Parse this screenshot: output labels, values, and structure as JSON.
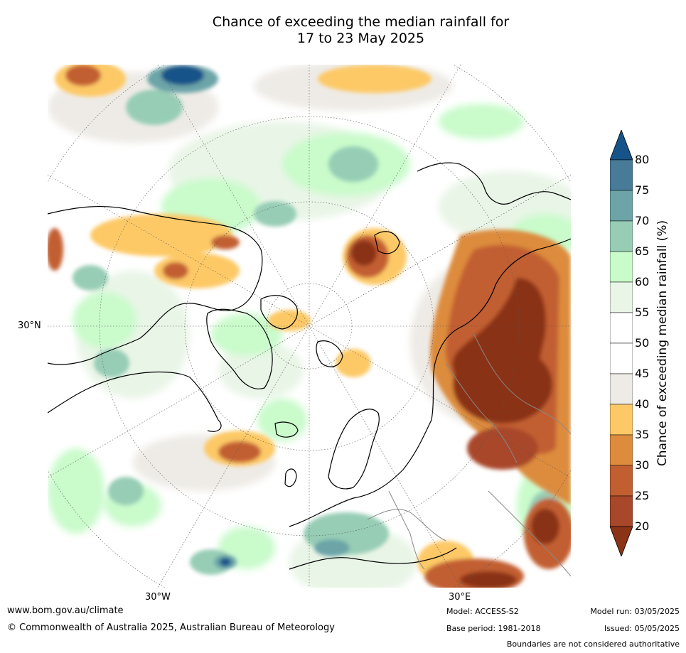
{
  "title": {
    "line1": "Chance of exceeding the median rainfall for",
    "line2": "17 to 23 May 2025"
  },
  "map": {
    "lat_label": "30°N",
    "lon_labels": [
      "30°W",
      "30°E"
    ]
  },
  "colorbar": {
    "title": "Chance of exceeding median rainfall (%)",
    "ticks": [
      "20",
      "25",
      "30",
      "35",
      "40",
      "45",
      "50",
      "55",
      "60",
      "65",
      "70",
      "75",
      "80"
    ],
    "colors": [
      "#8a3316",
      "#a9472a",
      "#c25f30",
      "#dd8c3e",
      "#fdc966",
      "#eeebe6",
      "#ffffff",
      "#ffffff",
      "#e9f5e7",
      "#c9fbcb",
      "#97cdb5",
      "#6ca4a8",
      "#477b97",
      "#165389"
    ]
  },
  "footer": {
    "website": "www.bom.gov.au/climate",
    "copyright": "© Commonwealth of Australia 2025, Australian Bureau of Meteorology",
    "model": "Model: ACCESS-S2",
    "base_period": "Base period: 1981-2018",
    "model_run": "Model run: 03/05/2025",
    "issued": "Issued: 05/05/2025",
    "disclaimer": "Boundaries are not considered authoritative"
  }
}
